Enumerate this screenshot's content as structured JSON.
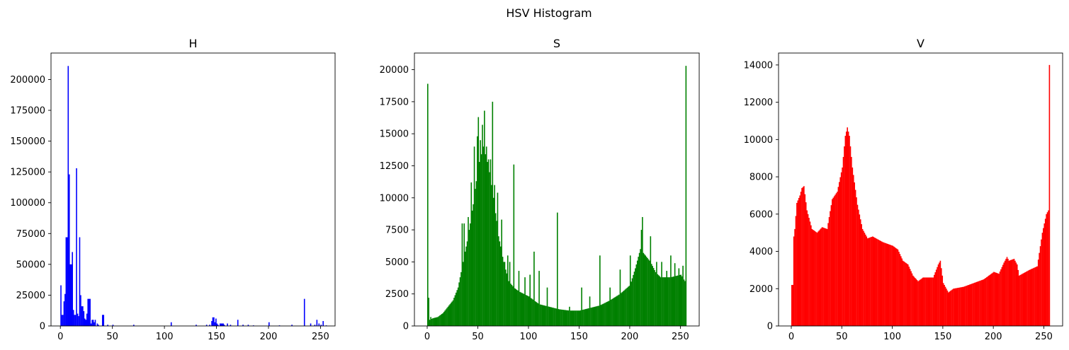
{
  "suptitle": "HSV Histogram",
  "chart_data": [
    {
      "type": "bar",
      "title": "H",
      "color": "#0000ff",
      "xlim": [
        -9,
        264
      ],
      "ylim": [
        0,
        221500
      ],
      "xticks": [
        0,
        50,
        100,
        150,
        200,
        250
      ],
      "yticks": [
        0,
        25000,
        50000,
        75000,
        100000,
        125000,
        150000,
        175000,
        200000
      ],
      "x": [
        0,
        1,
        2,
        3,
        4,
        5,
        6,
        7,
        8,
        9,
        10,
        11,
        12,
        13,
        14,
        15,
        16,
        17,
        18,
        19,
        20,
        21,
        22,
        23,
        24,
        25,
        26,
        27,
        28,
        29,
        30,
        31,
        32,
        33,
        35,
        36,
        40,
        41,
        45,
        50,
        70,
        106,
        130,
        140,
        143,
        145,
        146,
        147,
        148,
        149,
        150,
        151,
        153,
        154,
        155,
        156,
        157,
        160,
        163,
        170,
        175,
        180,
        185,
        200,
        210,
        222,
        234,
        240,
        244,
        246,
        248,
        250,
        252,
        255
      ],
      "values": [
        33000,
        9000,
        9000,
        20000,
        26000,
        72000,
        72000,
        211000,
        123000,
        50000,
        50000,
        60000,
        13000,
        9000,
        9000,
        128000,
        10000,
        8000,
        72000,
        25000,
        16000,
        16000,
        12000,
        6000,
        5000,
        10000,
        22000,
        22000,
        22000,
        2000,
        5000,
        5000,
        3000,
        5000,
        2000,
        1000,
        9000,
        9000,
        1000,
        1000,
        1000,
        3000,
        1000,
        1000,
        1000,
        4000,
        7000,
        7000,
        3000,
        6000,
        2000,
        1000,
        2000,
        2000,
        2000,
        2000,
        1000,
        2000,
        1000,
        5000,
        1000,
        1000,
        500,
        3000,
        500,
        1000,
        22000,
        2000,
        1000,
        5000,
        2000,
        1000,
        4000,
        500
      ]
    },
    {
      "type": "bar",
      "title": "S",
      "color": "#008000",
      "xlim": [
        -12.6,
        268.6
      ],
      "ylim": [
        0,
        21300
      ],
      "xticks": [
        0,
        50,
        100,
        150,
        200,
        250
      ],
      "yticks": [
        0,
        2500,
        5000,
        7500,
        10000,
        12500,
        15000,
        17500,
        20000
      ],
      "envelope": [
        [
          0,
          400
        ],
        [
          5,
          600
        ],
        [
          10,
          700
        ],
        [
          15,
          1000
        ],
        [
          20,
          1500
        ],
        [
          25,
          2000
        ],
        [
          30,
          3000
        ],
        [
          35,
          5000
        ],
        [
          40,
          7000
        ],
        [
          45,
          9500
        ],
        [
          50,
          12500
        ],
        [
          55,
          14000
        ],
        [
          60,
          12500
        ],
        [
          65,
          10000
        ],
        [
          70,
          7000
        ],
        [
          75,
          5000
        ],
        [
          80,
          3500
        ],
        [
          85,
          3000
        ],
        [
          90,
          2700
        ],
        [
          100,
          2300
        ],
        [
          110,
          1700
        ],
        [
          120,
          1500
        ],
        [
          130,
          1300
        ],
        [
          140,
          1200
        ],
        [
          150,
          1200
        ],
        [
          160,
          1400
        ],
        [
          170,
          1600
        ],
        [
          180,
          2000
        ],
        [
          190,
          2500
        ],
        [
          200,
          3200
        ],
        [
          205,
          4500
        ],
        [
          210,
          6000
        ],
        [
          215,
          5500
        ],
        [
          220,
          5000
        ],
        [
          225,
          4200
        ],
        [
          230,
          3800
        ],
        [
          240,
          3800
        ],
        [
          250,
          4000
        ],
        [
          254,
          3500
        ],
        [
          255,
          3500
        ]
      ],
      "spikes": [
        [
          0,
          18900
        ],
        [
          1,
          2200
        ],
        [
          3,
          700
        ],
        [
          34,
          8000
        ],
        [
          36,
          8000
        ],
        [
          40,
          8500
        ],
        [
          43,
          11200
        ],
        [
          46,
          14000
        ],
        [
          49,
          14800
        ],
        [
          50,
          16300
        ],
        [
          52,
          14500
        ],
        [
          54,
          15700
        ],
        [
          56,
          16800
        ],
        [
          58,
          14000
        ],
        [
          60,
          13000
        ],
        [
          62,
          13000
        ],
        [
          64,
          17500
        ],
        [
          66,
          11000
        ],
        [
          69,
          10400
        ],
        [
          73,
          8300
        ],
        [
          76,
          5000
        ],
        [
          79,
          5500
        ],
        [
          81,
          5000
        ],
        [
          85,
          12600
        ],
        [
          90,
          4300
        ],
        [
          96,
          3800
        ],
        [
          101,
          4000
        ],
        [
          105,
          5800
        ],
        [
          110,
          4300
        ],
        [
          118,
          3000
        ],
        [
          128,
          8850
        ],
        [
          140,
          1500
        ],
        [
          152,
          3000
        ],
        [
          160,
          2300
        ],
        [
          170,
          5500
        ],
        [
          180,
          3000
        ],
        [
          190,
          4400
        ],
        [
          200,
          5500
        ],
        [
          211,
          7500
        ],
        [
          212,
          8500
        ],
        [
          220,
          7000
        ],
        [
          226,
          5000
        ],
        [
          231,
          5000
        ],
        [
          236,
          4300
        ],
        [
          240,
          5500
        ],
        [
          244,
          4900
        ],
        [
          248,
          4500
        ],
        [
          252,
          4700
        ],
        [
          255,
          20300
        ]
      ]
    },
    {
      "type": "bar",
      "title": "V",
      "color": "#ff0000",
      "xlim": [
        -12.6,
        268.6
      ],
      "ylim": [
        0,
        14640
      ],
      "xticks": [
        0,
        50,
        100,
        150,
        200,
        250
      ],
      "yticks": [
        0,
        2000,
        4000,
        6000,
        8000,
        10000,
        12000,
        14000
      ],
      "envelope": [
        [
          0,
          2200
        ],
        [
          1,
          2200
        ],
        [
          2,
          4800
        ],
        [
          3,
          5200
        ],
        [
          5,
          6600
        ],
        [
          8,
          7000
        ],
        [
          10,
          7400
        ],
        [
          12,
          7500
        ],
        [
          15,
          6200
        ],
        [
          20,
          5200
        ],
        [
          25,
          5000
        ],
        [
          30,
          5300
        ],
        [
          35,
          5200
        ],
        [
          40,
          6800
        ],
        [
          45,
          7200
        ],
        [
          50,
          8500
        ],
        [
          53,
          10200
        ],
        [
          55,
          10650
        ],
        [
          57,
          10200
        ],
        [
          60,
          8500
        ],
        [
          65,
          6500
        ],
        [
          70,
          5200
        ],
        [
          75,
          4700
        ],
        [
          80,
          4800
        ],
        [
          90,
          4500
        ],
        [
          100,
          4300
        ],
        [
          105,
          4100
        ],
        [
          110,
          3500
        ],
        [
          115,
          3300
        ],
        [
          120,
          2700
        ],
        [
          125,
          2400
        ],
        [
          130,
          2600
        ],
        [
          140,
          2600
        ],
        [
          145,
          3300
        ],
        [
          147,
          3500
        ],
        [
          150,
          2300
        ],
        [
          155,
          1800
        ],
        [
          160,
          2000
        ],
        [
          170,
          2100
        ],
        [
          180,
          2300
        ],
        [
          190,
          2500
        ],
        [
          200,
          2900
        ],
        [
          205,
          2800
        ],
        [
          210,
          3400
        ],
        [
          213,
          3700
        ],
        [
          215,
          3500
        ],
        [
          220,
          3600
        ],
        [
          223,
          3300
        ],
        [
          225,
          2700
        ],
        [
          235,
          3000
        ],
        [
          243,
          3200
        ],
        [
          248,
          5000
        ],
        [
          252,
          6000
        ],
        [
          254,
          6200
        ],
        [
          255,
          14000
        ]
      ]
    }
  ]
}
